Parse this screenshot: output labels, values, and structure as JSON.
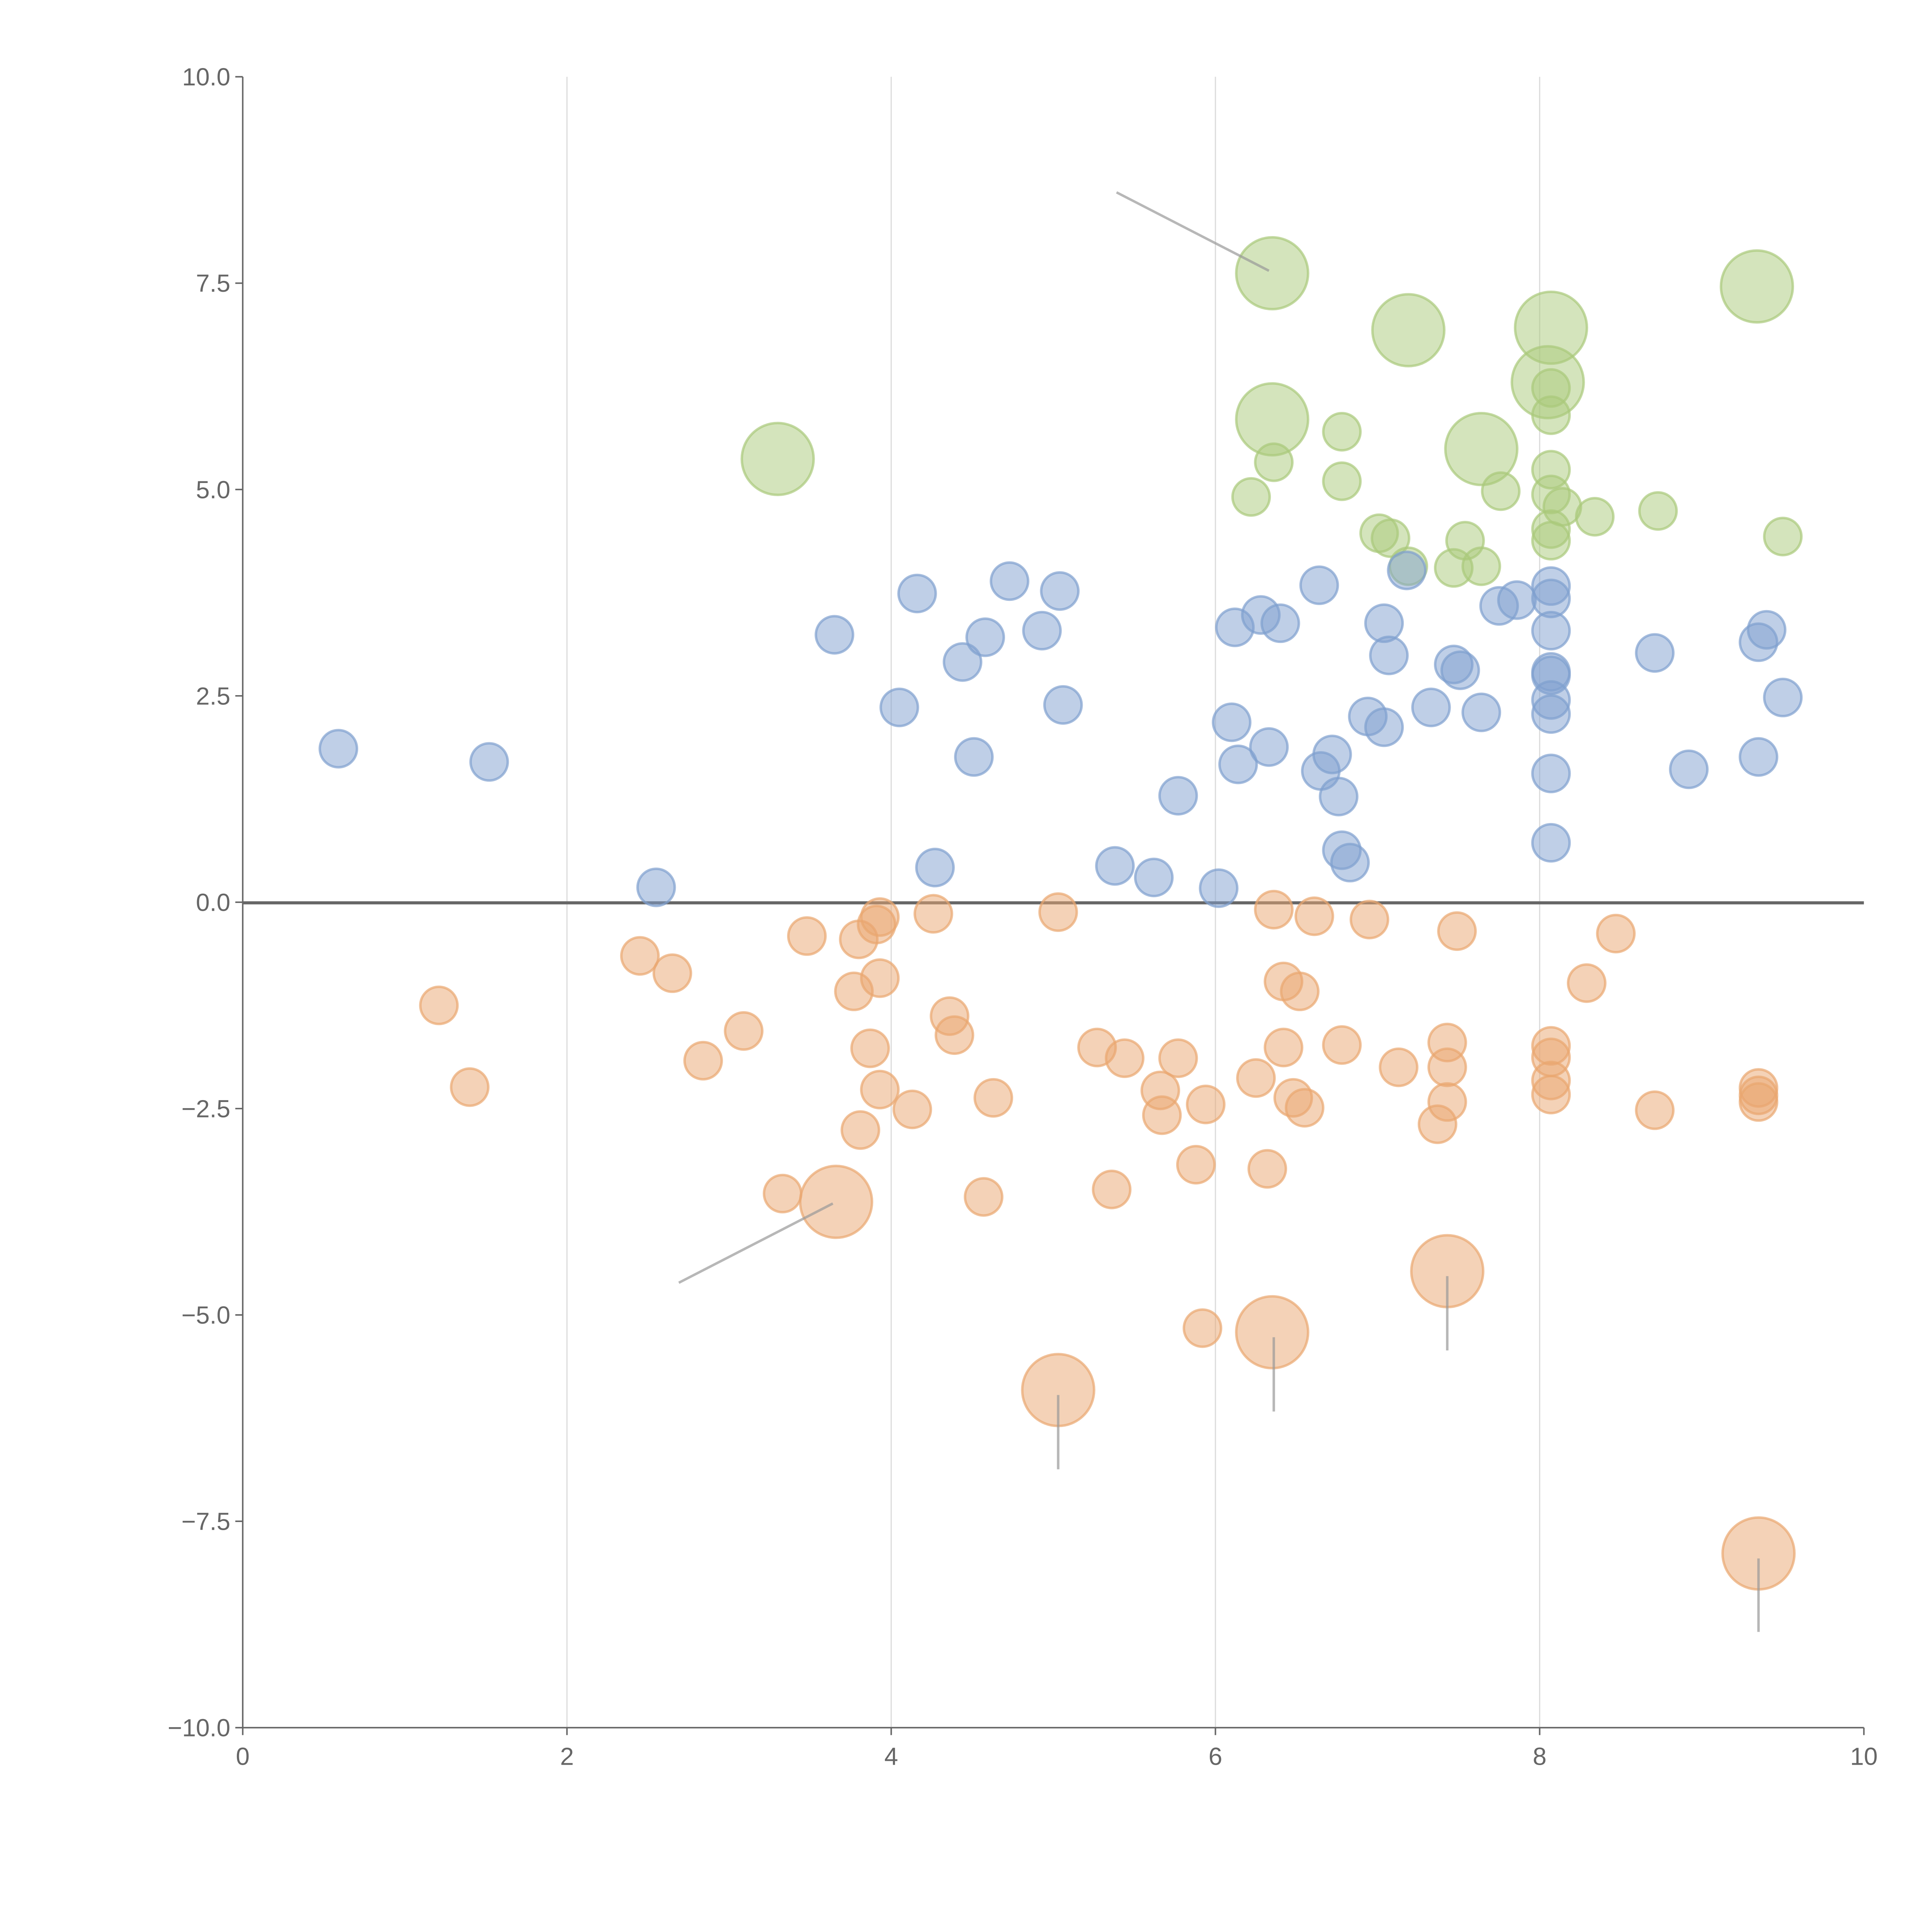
{
  "chart_data": {
    "type": "scatter",
    "title": "",
    "xlabel": "",
    "ylabel": "",
    "xlim": [
      0,
      10
    ],
    "ylim": [
      -10,
      10
    ],
    "x_ticks": [
      "0",
      "2",
      "4",
      "6",
      "8",
      "10"
    ],
    "y_ticks": [
      "10.0",
      "7.5",
      "5.0",
      "2.5",
      "0.0",
      "−2.5",
      "−5.0",
      "−7.5",
      "−10.0"
    ],
    "grid": "vertical",
    "legend": "none",
    "series": [
      {
        "name": "green",
        "color": "#a9c97a",
        "points": [
          [
            6.35,
            7.62,
            2
          ],
          [
            7.19,
            6.93,
            2
          ],
          [
            8.07,
            6.96,
            2
          ],
          [
            9.34,
            7.46,
            2
          ],
          [
            8.05,
            6.3,
            2
          ],
          [
            6.35,
            5.85,
            2
          ],
          [
            7.64,
            5.49,
            2
          ],
          [
            3.3,
            5.37,
            2
          ],
          [
            6.78,
            5.7,
            1
          ],
          [
            6.36,
            5.33,
            1
          ],
          [
            6.22,
            4.91,
            1
          ],
          [
            6.78,
            5.1,
            1
          ],
          [
            8.07,
            5.9,
            1
          ],
          [
            8.07,
            6.23,
            1
          ],
          [
            8.07,
            5.24,
            1
          ],
          [
            7.76,
            4.98,
            1
          ],
          [
            8.07,
            4.94,
            1
          ],
          [
            8.14,
            4.79,
            1
          ],
          [
            8.34,
            4.67,
            1
          ],
          [
            8.73,
            4.74,
            1
          ],
          [
            9.5,
            4.43,
            1
          ],
          [
            7.01,
            4.47,
            1
          ],
          [
            7.08,
            4.41,
            1
          ],
          [
            7.54,
            4.38,
            1
          ],
          [
            8.07,
            4.52,
            1
          ],
          [
            8.07,
            4.38,
            1
          ],
          [
            7.47,
            4.05,
            1
          ],
          [
            7.64,
            4.07,
            1
          ],
          [
            7.19,
            4.07,
            1
          ]
        ]
      },
      {
        "name": "blue",
        "color": "#7f9fcf",
        "points": [
          [
            0.59,
            1.86,
            1
          ],
          [
            1.52,
            1.7,
            1
          ],
          [
            2.55,
            0.18,
            1
          ],
          [
            3.65,
            3.24,
            1
          ],
          [
            4.05,
            2.36,
            1
          ],
          [
            4.16,
            3.74,
            1
          ],
          [
            4.27,
            0.42,
            1
          ],
          [
            4.44,
            2.91,
            1
          ],
          [
            4.51,
            1.76,
            1
          ],
          [
            4.58,
            3.21,
            1
          ],
          [
            4.73,
            3.89,
            1
          ],
          [
            4.93,
            3.29,
            1
          ],
          [
            5.04,
            3.77,
            1
          ],
          [
            5.06,
            2.39,
            1
          ],
          [
            5.38,
            0.44,
            1
          ],
          [
            5.62,
            0.3,
            1
          ],
          [
            5.77,
            1.29,
            1
          ],
          [
            6.02,
            0.17,
            1
          ],
          [
            6.1,
            2.18,
            1
          ],
          [
            6.12,
            3.33,
            1
          ],
          [
            6.14,
            1.67,
            1
          ],
          [
            6.28,
            3.48,
            1
          ],
          [
            6.33,
            1.88,
            1
          ],
          [
            6.4,
            3.38,
            1
          ],
          [
            6.64,
            3.84,
            1
          ],
          [
            6.65,
            1.59,
            1
          ],
          [
            6.72,
            1.79,
            1
          ],
          [
            6.76,
            1.28,
            1
          ],
          [
            6.78,
            0.63,
            1
          ],
          [
            6.83,
            0.48,
            1
          ],
          [
            6.94,
            2.25,
            1
          ],
          [
            7.04,
            2.12,
            1
          ],
          [
            7.04,
            3.38,
            1
          ],
          [
            7.07,
            2.99,
            1
          ],
          [
            7.18,
            4.02,
            1
          ],
          [
            7.33,
            2.36,
            1
          ],
          [
            7.47,
            2.88,
            1
          ],
          [
            7.51,
            2.81,
            1
          ],
          [
            7.64,
            2.3,
            1
          ],
          [
            7.75,
            3.59,
            1
          ],
          [
            7.86,
            3.66,
            1
          ],
          [
            8.07,
            3.83,
            1
          ],
          [
            8.07,
            3.68,
            1
          ],
          [
            8.07,
            3.29,
            1
          ],
          [
            8.07,
            2.79,
            1
          ],
          [
            8.07,
            2.75,
            1
          ],
          [
            8.07,
            2.45,
            1
          ],
          [
            8.07,
            2.28,
            1
          ],
          [
            8.07,
            1.56,
            1
          ],
          [
            8.07,
            0.72,
            1
          ],
          [
            8.71,
            3.02,
            1
          ],
          [
            8.92,
            1.61,
            1
          ],
          [
            9.35,
            3.15,
            1
          ],
          [
            9.4,
            3.3,
            1
          ],
          [
            9.35,
            1.76,
            1
          ],
          [
            9.5,
            2.48,
            1
          ]
        ]
      },
      {
        "name": "orange",
        "color": "#e9a66f",
        "points": [
          [
            1.21,
            -1.25,
            1
          ],
          [
            1.4,
            -2.24,
            1
          ],
          [
            2.45,
            -0.65,
            1
          ],
          [
            2.65,
            -0.86,
            1
          ],
          [
            2.84,
            -1.92,
            1
          ],
          [
            3.09,
            -1.56,
            1
          ],
          [
            3.33,
            -3.53,
            1
          ],
          [
            3.48,
            -0.41,
            1
          ],
          [
            3.77,
            -1.08,
            1
          ],
          [
            3.8,
            -0.45,
            1
          ],
          [
            3.81,
            -2.76,
            1
          ],
          [
            3.87,
            -1.77,
            1
          ],
          [
            3.91,
            -0.27,
            1
          ],
          [
            3.93,
            -0.18,
            1
          ],
          [
            3.93,
            -2.27,
            1
          ],
          [
            3.93,
            -0.92,
            1
          ],
          [
            4.13,
            -2.51,
            1
          ],
          [
            4.26,
            -0.14,
            1
          ],
          [
            4.36,
            -1.38,
            1
          ],
          [
            4.39,
            -1.61,
            1
          ],
          [
            4.57,
            -3.57,
            1
          ],
          [
            4.63,
            -2.37,
            1
          ],
          [
            5.03,
            -0.12,
            1
          ],
          [
            5.27,
            -1.76,
            1
          ],
          [
            5.36,
            -3.48,
            1
          ],
          [
            5.44,
            -1.89,
            1
          ],
          [
            5.66,
            -2.28,
            1
          ],
          [
            5.67,
            -2.58,
            1
          ],
          [
            5.77,
            -1.89,
            1
          ],
          [
            5.88,
            -3.18,
            1
          ],
          [
            5.92,
            -5.16,
            1
          ],
          [
            5.94,
            -2.45,
            1
          ],
          [
            6.25,
            -2.13,
            1
          ],
          [
            6.32,
            -3.23,
            1
          ],
          [
            6.36,
            -0.09,
            1
          ],
          [
            6.42,
            -0.96,
            1
          ],
          [
            6.42,
            -1.76,
            1
          ],
          [
            6.48,
            -2.37,
            1
          ],
          [
            6.52,
            -1.08,
            1
          ],
          [
            6.55,
            -2.49,
            1
          ],
          [
            6.61,
            -0.17,
            1
          ],
          [
            6.78,
            -1.73,
            1
          ],
          [
            6.95,
            -0.21,
            1
          ],
          [
            7.13,
            -2.0,
            1
          ],
          [
            7.37,
            -2.69,
            1
          ],
          [
            7.43,
            -1.7,
            1
          ],
          [
            7.43,
            -2.0,
            1
          ],
          [
            7.43,
            -2.42,
            1
          ],
          [
            7.49,
            -0.35,
            1
          ],
          [
            8.07,
            -1.74,
            1
          ],
          [
            8.07,
            -1.88,
            1
          ],
          [
            8.07,
            -2.16,
            1
          ],
          [
            8.07,
            -2.33,
            1
          ],
          [
            8.29,
            -0.98,
            1
          ],
          [
            8.47,
            -0.38,
            1
          ],
          [
            8.71,
            -2.52,
            1
          ],
          [
            9.35,
            -2.25,
            1
          ],
          [
            9.35,
            -2.34,
            1
          ],
          [
            9.35,
            -2.42,
            1
          ],
          [
            3.66,
            -3.63,
            2
          ],
          [
            5.03,
            -5.91,
            2
          ],
          [
            6.35,
            -5.21,
            2
          ],
          [
            7.43,
            -4.47,
            2
          ],
          [
            9.35,
            -7.89,
            2
          ]
        ]
      }
    ],
    "annotation_lines": [
      [
        [
          5.39,
          8.6
        ],
        [
          6.33,
          7.65
        ]
      ],
      [
        [
          2.69,
          -4.61
        ],
        [
          3.64,
          -3.65
        ]
      ],
      [
        [
          5.03,
          -5.97
        ],
        [
          5.03,
          -6.87
        ]
      ],
      [
        [
          6.36,
          -5.27
        ],
        [
          6.36,
          -6.17
        ]
      ],
      [
        [
          7.43,
          -4.53
        ],
        [
          7.43,
          -5.43
        ]
      ],
      [
        [
          9.35,
          -7.95
        ],
        [
          9.35,
          -8.84
        ]
      ]
    ]
  }
}
